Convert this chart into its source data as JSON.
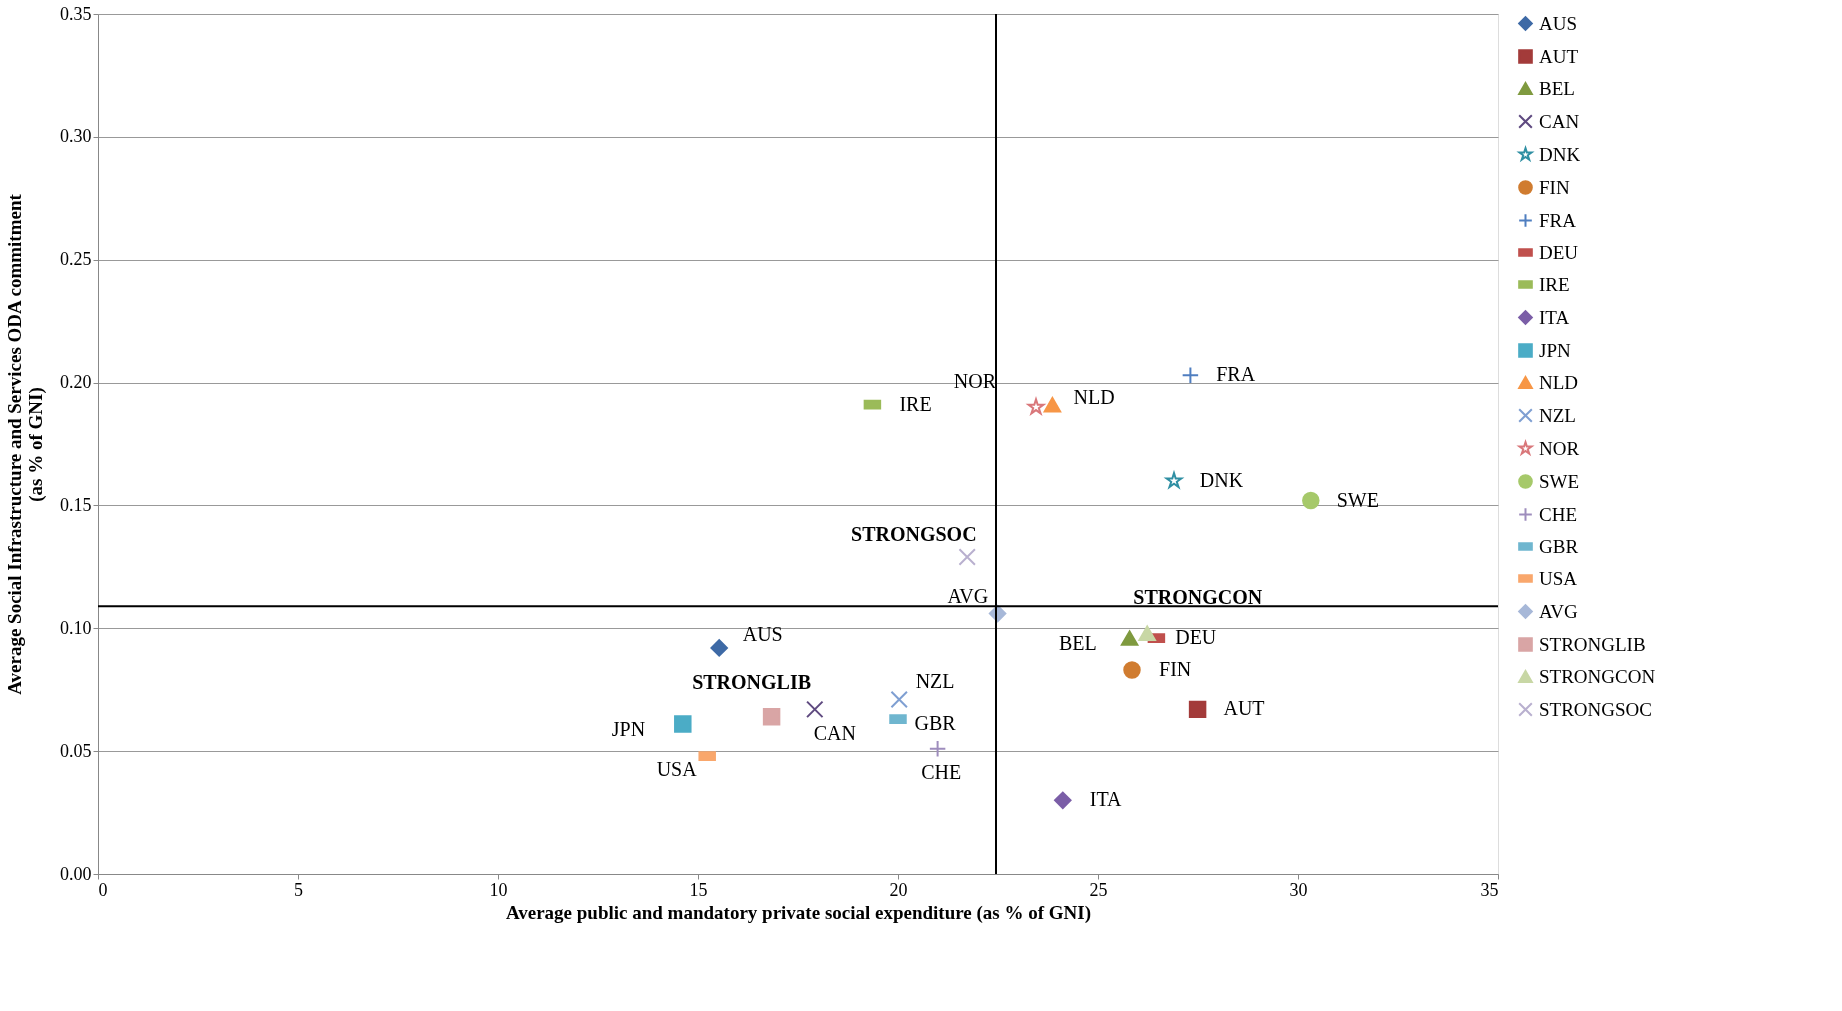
{
  "chart_data": {
    "type": "scatter",
    "xlabel": "Average public and mandatory private social expenditure (as % of GNI)",
    "ylabel": "Average Social Infrastructure and Services ODA commitment\n(as % of GNI)",
    "xlim": [
      0,
      35
    ],
    "xticks": [
      0,
      5,
      10,
      15,
      20,
      25,
      30,
      35
    ],
    "ylim": [
      0,
      0.35
    ],
    "yticks": [
      {
        "value": 0,
        "label": "0.00"
      },
      {
        "value": 0.05,
        "label": "0.05"
      },
      {
        "value": 0.1,
        "label": "0.10"
      },
      {
        "value": 0.15,
        "label": "0.15"
      },
      {
        "value": 0.2,
        "label": "0.20"
      },
      {
        "value": 0.25,
        "label": "0.25"
      },
      {
        "value": 0.3,
        "label": "0.30"
      },
      {
        "value": 0.35,
        "label": "0.35"
      }
    ],
    "grid": "y",
    "legend": "top right",
    "ref_lines": [
      {
        "axis": "x",
        "value": 22.45,
        "color": "#000000"
      },
      {
        "axis": "y",
        "value": 0.109,
        "color": "#000000"
      }
    ],
    "series": [
      {
        "name": "AUS",
        "color": "#3e6aa6",
        "marker": "diamond",
        "x": [
          15.53
        ],
        "values": [
          0.092
        ]
      },
      {
        "name": "AUT",
        "color": "#a33b3a",
        "marker": "square",
        "x": [
          27.49
        ],
        "values": [
          0.067
        ]
      },
      {
        "name": "BEL",
        "color": "#7f9a3f",
        "marker": "triangle",
        "x": [
          25.79
        ],
        "values": [
          0.096
        ]
      },
      {
        "name": "CAN",
        "color": "#5f4a80",
        "marker": "cross",
        "x": [
          17.92
        ],
        "values": [
          0.067
        ]
      },
      {
        "name": "DNK",
        "color": "#2f8fa3",
        "marker": "star",
        "x": [
          26.9
        ],
        "values": [
          0.16
        ]
      },
      {
        "name": "FIN",
        "color": "#d07c30",
        "marker": "circle",
        "x": [
          25.85
        ],
        "values": [
          0.083
        ]
      },
      {
        "name": "FRA",
        "color": "#4f7ec0",
        "marker": "plus",
        "x": [
          27.31
        ],
        "values": [
          0.203
        ]
      },
      {
        "name": "DEU",
        "color": "#c0504d",
        "x": [
          26.46
        ],
        "values": [
          0.096
        ]
      },
      {
        "name": "IRE",
        "color": "#9bbb59",
        "x": [
          19.36
        ],
        "values": [
          0.191
        ]
      },
      {
        "name": "ITA",
        "color": "#7b5ea7",
        "marker": "diamond",
        "x": [
          24.12
        ],
        "values": [
          0.03
        ]
      },
      {
        "name": "JPN",
        "color": "#4bacc6",
        "marker": "square",
        "x": [
          14.62
        ],
        "values": [
          0.061
        ]
      },
      {
        "name": "NLD",
        "color": "#f79646",
        "marker": "triangle",
        "x": [
          23.86
        ],
        "values": [
          0.191
        ]
      },
      {
        "name": "NZL",
        "color": "#7f9fd2",
        "marker": "cross",
        "x": [
          20.03
        ],
        "values": [
          0.071
        ]
      },
      {
        "name": "NOR",
        "color": "#d9777a",
        "marker": "star",
        "x": [
          23.45
        ],
        "values": [
          0.19
        ]
      },
      {
        "name": "SWE",
        "color": "#a6c96a",
        "marker": "circle",
        "x": [
          30.32
        ],
        "values": [
          0.152
        ]
      },
      {
        "name": "CHE",
        "color": "#9e8dbd",
        "marker": "plus",
        "x": [
          20.99
        ],
        "values": [
          0.051
        ]
      },
      {
        "name": "GBR",
        "color": "#6fb6cf",
        "x": [
          20.0
        ],
        "values": [
          0.063
        ]
      },
      {
        "name": "USA",
        "color": "#f9a76c",
        "x": [
          15.23
        ],
        "values": [
          0.048
        ]
      },
      {
        "name": "AVG",
        "color": "#a7b8d8",
        "marker": "diamond",
        "x": [
          22.49
        ],
        "values": [
          0.106
        ]
      },
      {
        "name": "STRONGLIB",
        "color": "#d9a5a5",
        "marker": "square",
        "x": [
          16.84
        ],
        "values": [
          0.064
        ]
      },
      {
        "name": "STRONGCON",
        "color": "#c8d7a5",
        "marker": "triangle",
        "x": [
          26.23
        ],
        "values": [
          0.098
        ]
      },
      {
        "name": "STRONGSOC",
        "color": "#b9b0cf",
        "marker": "cross",
        "x": [
          21.73
        ],
        "values": [
          0.129
        ]
      }
    ]
  }
}
